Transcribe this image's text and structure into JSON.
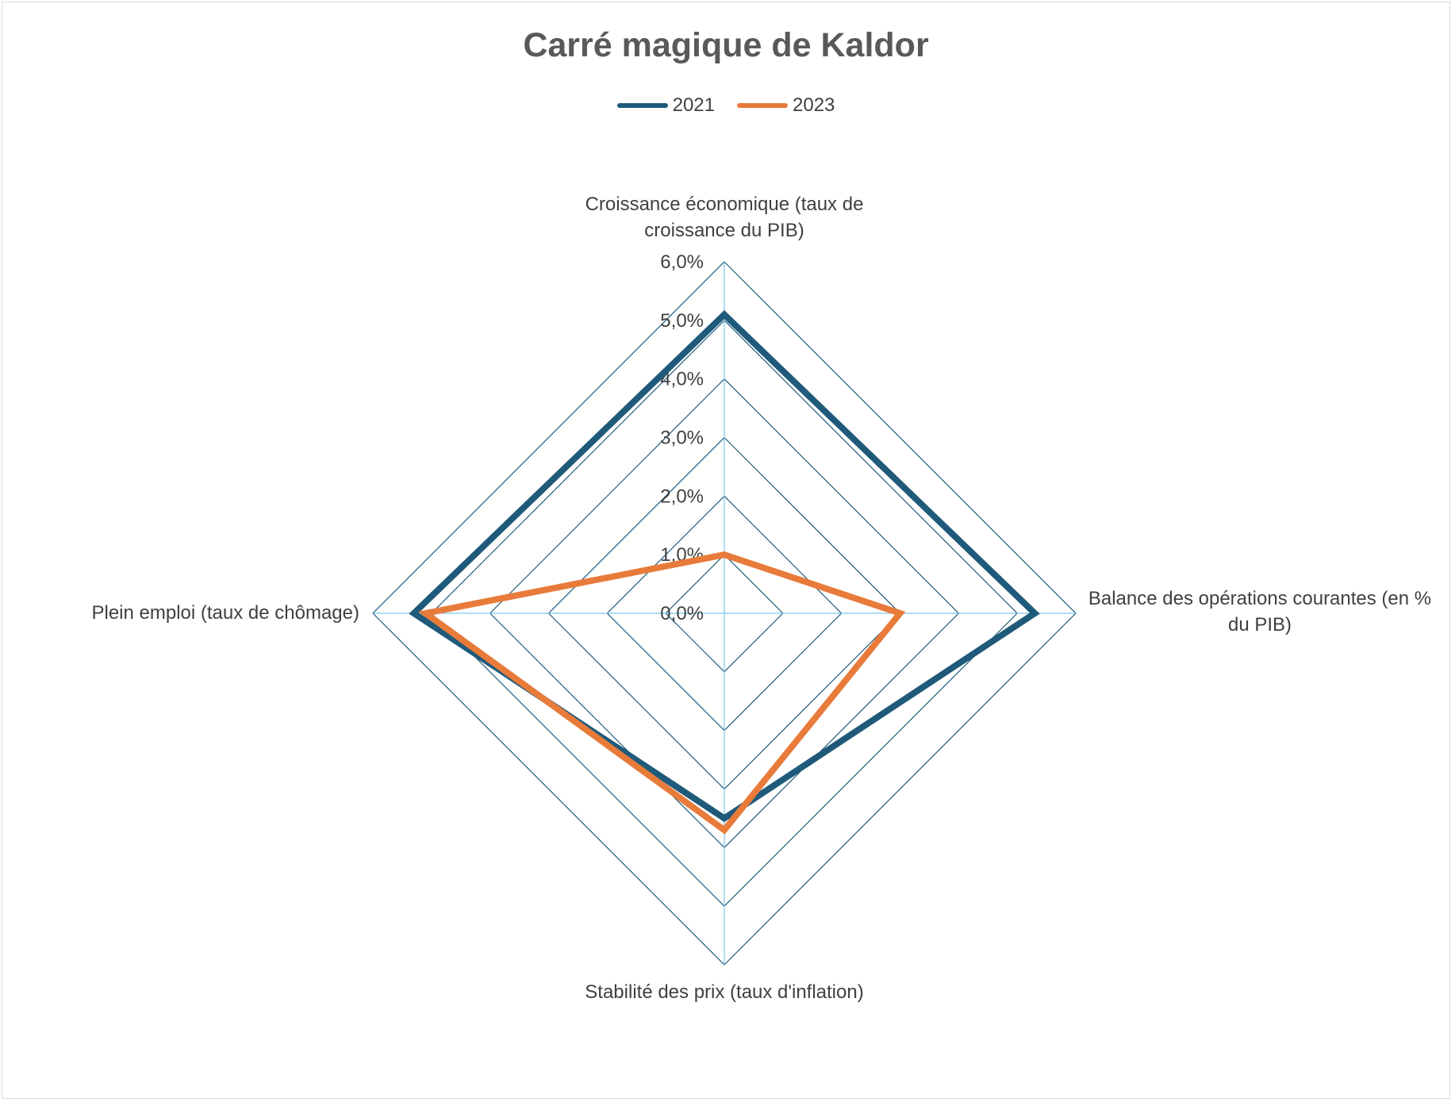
{
  "chart_data": {
    "type": "radar",
    "title": "Carré magique de Kaldor",
    "axes": [
      {
        "label": "Croissance économique (taux de croissance du PIB)",
        "lines": [
          "Croissance économique (taux de",
          "croissance du PIB)"
        ]
      },
      {
        "label": "Balance des opérations courantes (en % du PIB)",
        "lines": [
          "Balance des opérations courantes (en %",
          "du PIB)"
        ]
      },
      {
        "label": "Stabilité des prix (taux d'inflation)",
        "lines": [
          "Stabilité des prix (taux d'inflation)"
        ]
      },
      {
        "label": "Plein emploi (taux de chômage)",
        "lines": [
          "Plein emploi (taux de chômage)"
        ]
      }
    ],
    "ticks": [
      "0,0%",
      "1,0%",
      "2,0%",
      "3,0%",
      "4,0%",
      "5,0%",
      "6,0%"
    ],
    "range": [
      0,
      6
    ],
    "series": [
      {
        "name": "2021",
        "color": "#1f5a7a",
        "values": [
          5.1,
          5.3,
          3.5,
          5.3
        ]
      },
      {
        "name": "2023",
        "color": "#e87b3a",
        "values": [
          1.0,
          3.0,
          3.7,
          5.1
        ]
      }
    ],
    "grid": true,
    "grid_color": "#1f5a7a",
    "spoke_color": "#7fc8e8",
    "legend_position": "top"
  }
}
